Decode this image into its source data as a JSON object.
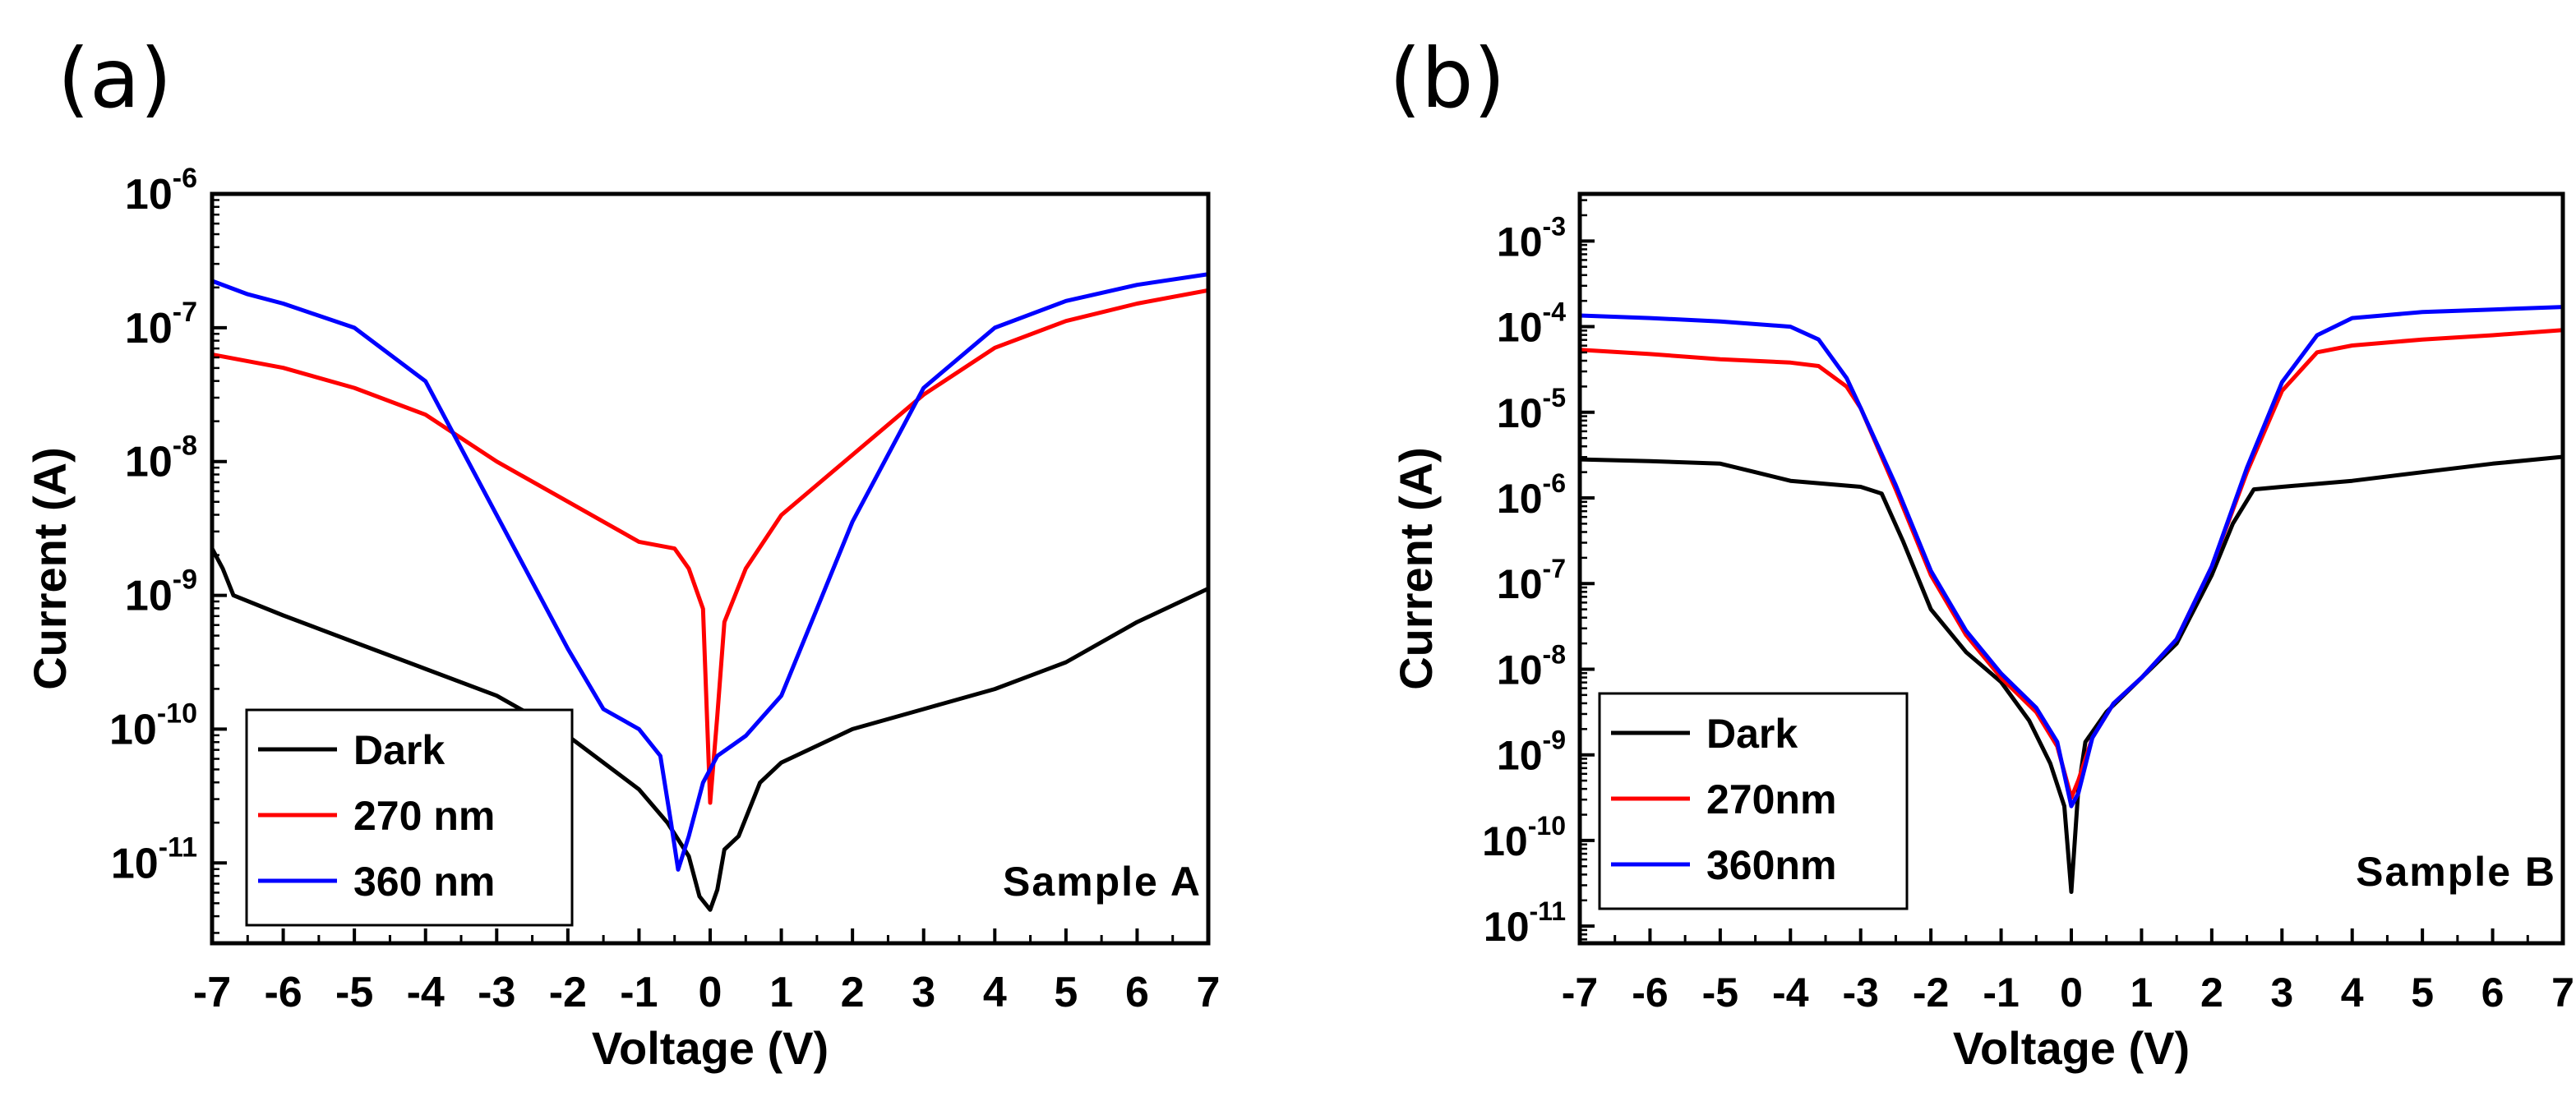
{
  "chart_data": [
    {
      "type": "line",
      "panel_label": "(a)",
      "xlabel": "Voltage (V)",
      "ylabel": "Current (A)",
      "xlim": [
        -7,
        7
      ],
      "x_ticks": [
        "-7",
        "-6",
        "-5",
        "-4",
        "-3",
        "-2",
        "-1",
        "0",
        "1",
        "2",
        "3",
        "4",
        "5",
        "6",
        "7"
      ],
      "y_scale": "log",
      "ylim_exp": [
        -11.6,
        -6
      ],
      "y_ticks": [
        {
          "exp": -6,
          "base": "10",
          "sup": "-6"
        },
        {
          "exp": -7,
          "base": "10",
          "sup": "-7"
        },
        {
          "exp": -8,
          "base": "10",
          "sup": "-8"
        },
        {
          "exp": -9,
          "base": "10",
          "sup": "-9"
        },
        {
          "exp": -10,
          "base": "10",
          "sup": "-10"
        },
        {
          "exp": -11,
          "base": "10",
          "sup": "-11"
        }
      ],
      "annotation": "Sample A",
      "legend_position": "bottom-left",
      "series": [
        {
          "name": "Dark",
          "color": "#000000",
          "points": [
            [
              -7,
              -8.65
            ],
            [
              -6.85,
              -8.8
            ],
            [
              -6.7,
              -9.0
            ],
            [
              -6,
              -9.15
            ],
            [
              -5,
              -9.35
            ],
            [
              -4,
              -9.55
            ],
            [
              -3,
              -9.75
            ],
            [
              -2,
              -10.05
            ],
            [
              -1.5,
              -10.25
            ],
            [
              -1,
              -10.45
            ],
            [
              -0.6,
              -10.7
            ],
            [
              -0.3,
              -10.95
            ],
            [
              -0.15,
              -11.25
            ],
            [
              0,
              -11.35
            ],
            [
              0.1,
              -11.2
            ],
            [
              0.2,
              -10.9
            ],
            [
              0.4,
              -10.8
            ],
            [
              0.7,
              -10.4
            ],
            [
              1,
              -10.25
            ],
            [
              2,
              -10.0
            ],
            [
              3,
              -9.85
            ],
            [
              4,
              -9.7
            ],
            [
              5,
              -9.5
            ],
            [
              6,
              -9.2
            ],
            [
              7,
              -8.95
            ]
          ]
        },
        {
          "name": "270 nm",
          "color": "#ff0000",
          "points": [
            [
              -7,
              -7.2
            ],
            [
              -6.5,
              -7.25
            ],
            [
              -6,
              -7.3
            ],
            [
              -5,
              -7.45
            ],
            [
              -4,
              -7.65
            ],
            [
              -3,
              -8.0
            ],
            [
              -2,
              -8.3
            ],
            [
              -1,
              -8.6
            ],
            [
              -0.5,
              -8.65
            ],
            [
              -0.3,
              -8.8
            ],
            [
              -0.1,
              -9.1
            ],
            [
              0,
              -10.55
            ],
            [
              0.1,
              -9.9
            ],
            [
              0.2,
              -9.2
            ],
            [
              0.5,
              -8.8
            ],
            [
              1,
              -8.4
            ],
            [
              2,
              -7.95
            ],
            [
              3,
              -7.5
            ],
            [
              4,
              -7.15
            ],
            [
              5,
              -6.95
            ],
            [
              6,
              -6.82
            ],
            [
              7,
              -6.72
            ]
          ]
        },
        {
          "name": "360 nm",
          "color": "#0000ff",
          "points": [
            [
              -7,
              -6.65
            ],
            [
              -6.5,
              -6.75
            ],
            [
              -6,
              -6.82
            ],
            [
              -5,
              -7.0
            ],
            [
              -4,
              -7.4
            ],
            [
              -3.5,
              -7.9
            ],
            [
              -3,
              -8.4
            ],
            [
              -2.5,
              -8.9
            ],
            [
              -2,
              -9.4
            ],
            [
              -1.5,
              -9.85
            ],
            [
              -1,
              -10.0
            ],
            [
              -0.7,
              -10.2
            ],
            [
              -0.55,
              -10.7
            ],
            [
              -0.45,
              -11.05
            ],
            [
              -0.3,
              -10.8
            ],
            [
              -0.1,
              -10.4
            ],
            [
              0.1,
              -10.2
            ],
            [
              0.5,
              -10.05
            ],
            [
              1,
              -9.75
            ],
            [
              1.5,
              -9.1
            ],
            [
              2,
              -8.45
            ],
            [
              3,
              -7.45
            ],
            [
              4,
              -7.0
            ],
            [
              5,
              -6.8
            ],
            [
              6,
              -6.68
            ],
            [
              7,
              -6.6
            ]
          ]
        }
      ]
    },
    {
      "type": "line",
      "panel_label": "(b)",
      "xlabel": "Voltage (V)",
      "ylabel": "Current (A)",
      "xlim": [
        -7,
        7
      ],
      "x_ticks": [
        "-7",
        "-6",
        "-5",
        "-4",
        "-3",
        "-2",
        "-1",
        "0",
        "1",
        "2",
        "3",
        "4",
        "5",
        "6",
        "7"
      ],
      "y_scale": "log",
      "ylim_exp": [
        -11.2,
        -2.45
      ],
      "y_ticks": [
        {
          "exp": -3,
          "base": "10",
          "sup": "-3"
        },
        {
          "exp": -4,
          "base": "10",
          "sup": "-4"
        },
        {
          "exp": -5,
          "base": "10",
          "sup": "-5"
        },
        {
          "exp": -6,
          "base": "10",
          "sup": "-6"
        },
        {
          "exp": -7,
          "base": "10",
          "sup": "-7"
        },
        {
          "exp": -8,
          "base": "10",
          "sup": "-8"
        },
        {
          "exp": -9,
          "base": "10",
          "sup": "-9"
        },
        {
          "exp": -10,
          "base": "10",
          "sup": "-10"
        },
        {
          "exp": -11,
          "base": "10",
          "sup": "-11"
        }
      ],
      "annotation": "Sample B",
      "legend_position": "bottom-left",
      "series": [
        {
          "name": "Dark",
          "color": "#000000",
          "points": [
            [
              -7,
              -5.55
            ],
            [
              -6,
              -5.57
            ],
            [
              -5,
              -5.6
            ],
            [
              -4.5,
              -5.7
            ],
            [
              -4,
              -5.8
            ],
            [
              -3,
              -5.87
            ],
            [
              -2.7,
              -5.95
            ],
            [
              -2.4,
              -6.5
            ],
            [
              -2,
              -7.3
            ],
            [
              -1.5,
              -7.8
            ],
            [
              -1,
              -8.15
            ],
            [
              -0.6,
              -8.6
            ],
            [
              -0.3,
              -9.1
            ],
            [
              -0.1,
              -9.6
            ],
            [
              0,
              -10.6
            ],
            [
              0.1,
              -9.4
            ],
            [
              0.2,
              -8.85
            ],
            [
              0.5,
              -8.5
            ],
            [
              1,
              -8.1
            ],
            [
              1.5,
              -7.7
            ],
            [
              2,
              -6.9
            ],
            [
              2.3,
              -6.3
            ],
            [
              2.6,
              -5.9
            ],
            [
              3,
              -5.87
            ],
            [
              4,
              -5.8
            ],
            [
              5,
              -5.7
            ],
            [
              6,
              -5.6
            ],
            [
              7,
              -5.52
            ]
          ]
        },
        {
          "name": "270nm",
          "color": "#ff0000",
          "points": [
            [
              -7,
              -4.27
            ],
            [
              -6,
              -4.32
            ],
            [
              -5,
              -4.38
            ],
            [
              -4,
              -4.42
            ],
            [
              -3.6,
              -4.46
            ],
            [
              -3.2,
              -4.7
            ],
            [
              -3,
              -4.95
            ],
            [
              -2.5,
              -5.9
            ],
            [
              -2,
              -6.9
            ],
            [
              -1.5,
              -7.6
            ],
            [
              -1,
              -8.1
            ],
            [
              -0.5,
              -8.5
            ],
            [
              -0.2,
              -8.9
            ],
            [
              0,
              -9.5
            ],
            [
              0.1,
              -9.3
            ],
            [
              0.3,
              -8.8
            ],
            [
              0.6,
              -8.4
            ],
            [
              1,
              -8.1
            ],
            [
              1.5,
              -7.65
            ],
            [
              2,
              -6.8
            ],
            [
              2.5,
              -5.7
            ],
            [
              3,
              -4.75
            ],
            [
              3.5,
              -4.3
            ],
            [
              4,
              -4.22
            ],
            [
              5,
              -4.15
            ],
            [
              6,
              -4.1
            ],
            [
              7,
              -4.04
            ]
          ]
        },
        {
          "name": "360nm",
          "color": "#0000ff",
          "points": [
            [
              -7,
              -3.87
            ],
            [
              -6,
              -3.9
            ],
            [
              -5,
              -3.94
            ],
            [
              -4,
              -4.0
            ],
            [
              -3.6,
              -4.15
            ],
            [
              -3.2,
              -4.6
            ],
            [
              -3,
              -4.95
            ],
            [
              -2.5,
              -5.85
            ],
            [
              -2,
              -6.85
            ],
            [
              -1.5,
              -7.55
            ],
            [
              -1,
              -8.05
            ],
            [
              -0.5,
              -8.45
            ],
            [
              -0.2,
              -8.85
            ],
            [
              0,
              -9.6
            ],
            [
              0.1,
              -9.45
            ],
            [
              0.3,
              -8.8
            ],
            [
              0.6,
              -8.4
            ],
            [
              1,
              -8.1
            ],
            [
              1.5,
              -7.65
            ],
            [
              2,
              -6.8
            ],
            [
              2.5,
              -5.65
            ],
            [
              3,
              -4.65
            ],
            [
              3.5,
              -4.1
            ],
            [
              4,
              -3.9
            ],
            [
              5,
              -3.83
            ],
            [
              6,
              -3.8
            ],
            [
              7,
              -3.77
            ]
          ]
        }
      ]
    }
  ]
}
